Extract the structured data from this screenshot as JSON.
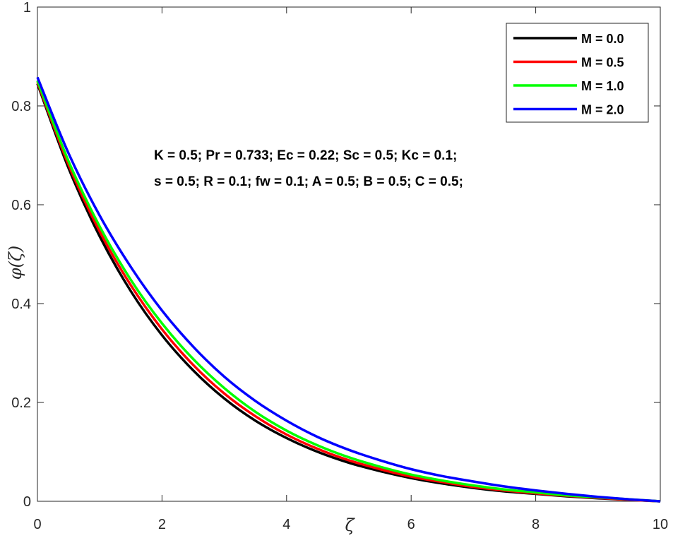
{
  "chart_data": {
    "type": "line",
    "xlabel": "ζ",
    "ylabel": "φ(ζ)",
    "xlim": [
      0,
      10
    ],
    "ylim": [
      0,
      1
    ],
    "xticks": [
      "0",
      "2",
      "4",
      "6",
      "8",
      "10"
    ],
    "yticks": [
      "0",
      "0.2",
      "0.4",
      "0.6",
      "0.8",
      "1"
    ],
    "grid": false,
    "legend_position": "top-right",
    "annotations": [
      "K = 0.5; Pr = 0.733; Ec = 0.22; Sc = 0.5; Kc = 0.1;",
      "s = 0.5; R = 0.1; fw = 0.1; A = 0.5; B = 0.5; C = 0.5;"
    ],
    "x": [
      0,
      0.5,
      1,
      1.5,
      2,
      2.5,
      3,
      3.5,
      4,
      4.5,
      5,
      5.5,
      6,
      6.5,
      7,
      7.5,
      8,
      8.5,
      9,
      9.5,
      10
    ],
    "series": [
      {
        "name": "M = 0.0",
        "color": "#000000",
        "values": [
          0.845,
          0.674,
          0.536,
          0.425,
          0.336,
          0.265,
          0.208,
          0.163,
          0.128,
          0.1,
          0.078,
          0.061,
          0.047,
          0.036,
          0.027,
          0.02,
          0.015,
          0.01,
          0.006,
          0.003,
          0.0
        ]
      },
      {
        "name": "M = 0.5",
        "color": "#ff0000",
        "values": [
          0.848,
          0.681,
          0.546,
          0.437,
          0.348,
          0.276,
          0.218,
          0.172,
          0.135,
          0.106,
          0.083,
          0.065,
          0.05,
          0.039,
          0.029,
          0.022,
          0.016,
          0.011,
          0.007,
          0.003,
          0.0
        ]
      },
      {
        "name": "M = 1.0",
        "color": "#00ff00",
        "values": [
          0.851,
          0.688,
          0.556,
          0.448,
          0.36,
          0.288,
          0.229,
          0.181,
          0.143,
          0.113,
          0.089,
          0.07,
          0.054,
          0.042,
          0.032,
          0.024,
          0.018,
          0.012,
          0.008,
          0.004,
          0.0
        ]
      },
      {
        "name": "M = 2.0",
        "color": "#0000ff",
        "values": [
          0.858,
          0.704,
          0.578,
          0.474,
          0.386,
          0.313,
          0.252,
          0.203,
          0.163,
          0.13,
          0.104,
          0.083,
          0.065,
          0.051,
          0.04,
          0.03,
          0.022,
          0.015,
          0.009,
          0.004,
          0.0
        ]
      }
    ]
  }
}
